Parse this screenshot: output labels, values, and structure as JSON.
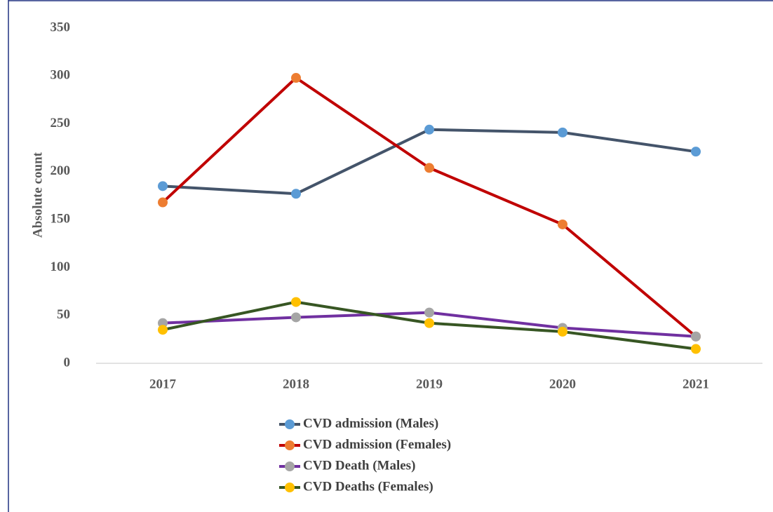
{
  "chart_data": {
    "type": "line",
    "y_label": "Absolute count",
    "categories": [
      "2017",
      "2018",
      "2019",
      "2020",
      "2021"
    ],
    "series": [
      {
        "name": "CVD admission (Males)",
        "color": "#44546a",
        "marker_color": "#5b9bd5",
        "values": [
          185,
          177,
          244,
          241,
          221
        ]
      },
      {
        "name": "CVD admission (Females)",
        "color": "#c00000",
        "marker_color": "#ed7d31",
        "values": [
          168,
          298,
          204,
          145,
          28
        ]
      },
      {
        "name": "CVD Death (Males)",
        "color": "#7030a0",
        "marker_color": "#a5a5a5",
        "values": [
          42,
          48,
          53,
          37,
          28
        ]
      },
      {
        "name": "CVD Deaths (Females)",
        "color": "#375623",
        "marker_color": "#ffc000",
        "values": [
          35,
          64,
          42,
          33,
          15
        ]
      }
    ],
    "ylim": [
      0,
      350
    ],
    "yticks": [
      0,
      50,
      100,
      150,
      200,
      250,
      300,
      350
    ],
    "grid": false,
    "legend": "bottom"
  }
}
